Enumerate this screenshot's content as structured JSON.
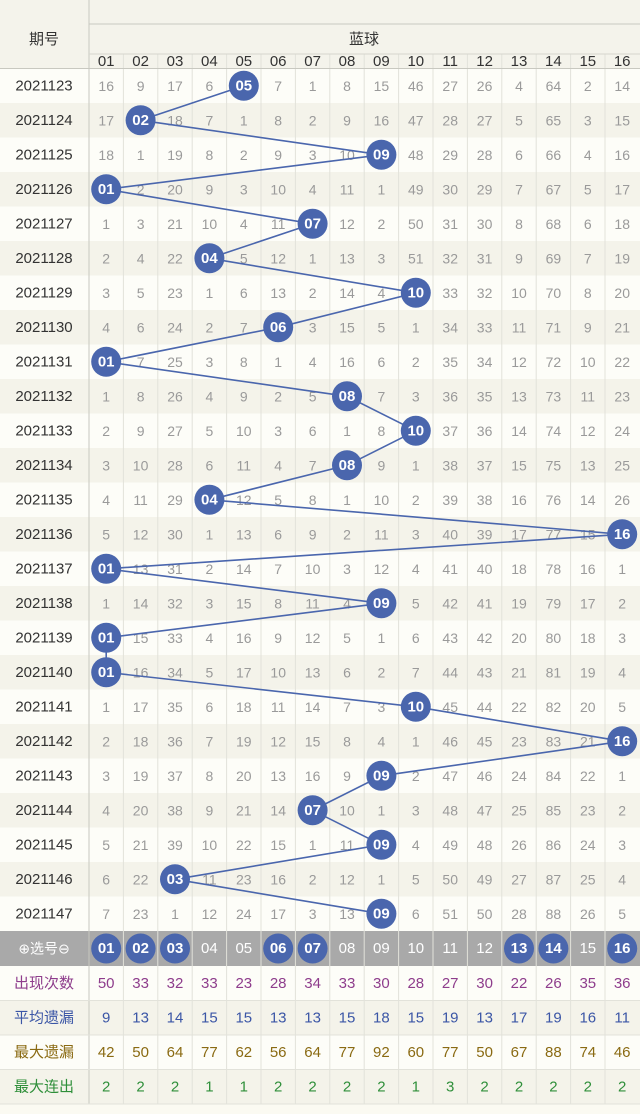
{
  "header": {
    "issue_col": "期号",
    "group_title": "蓝球",
    "numbers": [
      "01",
      "02",
      "03",
      "04",
      "05",
      "06",
      "07",
      "08",
      "09",
      "10",
      "11",
      "12",
      "13",
      "14",
      "15",
      "16"
    ]
  },
  "chart_data": {
    "type": "table",
    "columns": [
      "01",
      "02",
      "03",
      "04",
      "05",
      "06",
      "07",
      "08",
      "09",
      "10",
      "11",
      "12",
      "13",
      "14",
      "15",
      "16"
    ],
    "rows": [
      {
        "issue": "2021123",
        "hit": 5,
        "cells": [
          16,
          9,
          17,
          6,
          0,
          7,
          1,
          8,
          15,
          46,
          27,
          26,
          4,
          64,
          2,
          14
        ]
      },
      {
        "issue": "2021124",
        "hit": 2,
        "cells": [
          17,
          0,
          18,
          7,
          1,
          8,
          2,
          9,
          16,
          47,
          28,
          27,
          5,
          65,
          3,
          15
        ]
      },
      {
        "issue": "2021125",
        "hit": 9,
        "cells": [
          18,
          1,
          19,
          8,
          2,
          9,
          3,
          10,
          0,
          48,
          29,
          28,
          6,
          66,
          4,
          16
        ]
      },
      {
        "issue": "2021126",
        "hit": 1,
        "cells": [
          0,
          2,
          20,
          9,
          3,
          10,
          4,
          11,
          1,
          49,
          30,
          29,
          7,
          67,
          5,
          17
        ]
      },
      {
        "issue": "2021127",
        "hit": 7,
        "cells": [
          1,
          3,
          21,
          10,
          4,
          11,
          0,
          12,
          2,
          50,
          31,
          30,
          8,
          68,
          6,
          18
        ]
      },
      {
        "issue": "2021128",
        "hit": 4,
        "cells": [
          2,
          4,
          22,
          0,
          5,
          12,
          1,
          13,
          3,
          51,
          32,
          31,
          9,
          69,
          7,
          19
        ]
      },
      {
        "issue": "2021129",
        "hit": 10,
        "cells": [
          3,
          5,
          23,
          1,
          6,
          13,
          2,
          14,
          4,
          0,
          33,
          32,
          10,
          70,
          8,
          20
        ]
      },
      {
        "issue": "2021130",
        "hit": 6,
        "cells": [
          4,
          6,
          24,
          2,
          7,
          0,
          3,
          15,
          5,
          1,
          34,
          33,
          11,
          71,
          9,
          21
        ]
      },
      {
        "issue": "2021131",
        "hit": 1,
        "cells": [
          0,
          7,
          25,
          3,
          8,
          1,
          4,
          16,
          6,
          2,
          35,
          34,
          12,
          72,
          10,
          22
        ]
      },
      {
        "issue": "2021132",
        "hit": 8,
        "cells": [
          1,
          8,
          26,
          4,
          9,
          2,
          5,
          0,
          7,
          3,
          36,
          35,
          13,
          73,
          11,
          23
        ]
      },
      {
        "issue": "2021133",
        "hit": 10,
        "cells": [
          2,
          9,
          27,
          5,
          10,
          3,
          6,
          1,
          8,
          0,
          37,
          36,
          14,
          74,
          12,
          24
        ]
      },
      {
        "issue": "2021134",
        "hit": 8,
        "cells": [
          3,
          10,
          28,
          6,
          11,
          4,
          7,
          0,
          9,
          1,
          38,
          37,
          15,
          75,
          13,
          25
        ]
      },
      {
        "issue": "2021135",
        "hit": 4,
        "cells": [
          4,
          11,
          29,
          0,
          12,
          5,
          8,
          1,
          10,
          2,
          39,
          38,
          16,
          76,
          14,
          26
        ]
      },
      {
        "issue": "2021136",
        "hit": 16,
        "cells": [
          5,
          12,
          30,
          1,
          13,
          6,
          9,
          2,
          11,
          3,
          40,
          39,
          17,
          77,
          15,
          0
        ]
      },
      {
        "issue": "2021137",
        "hit": 1,
        "cells": [
          0,
          13,
          31,
          2,
          14,
          7,
          10,
          3,
          12,
          4,
          41,
          40,
          18,
          78,
          16,
          1
        ]
      },
      {
        "issue": "2021138",
        "hit": 9,
        "cells": [
          1,
          14,
          32,
          3,
          15,
          8,
          11,
          4,
          0,
          5,
          42,
          41,
          19,
          79,
          17,
          2
        ]
      },
      {
        "issue": "2021139",
        "hit": 1,
        "cells": [
          0,
          15,
          33,
          4,
          16,
          9,
          12,
          5,
          1,
          6,
          43,
          42,
          20,
          80,
          18,
          3
        ]
      },
      {
        "issue": "2021140",
        "hit": 1,
        "cells": [
          0,
          16,
          34,
          5,
          17,
          10,
          13,
          6,
          2,
          7,
          44,
          43,
          21,
          81,
          19,
          4
        ]
      },
      {
        "issue": "2021141",
        "hit": 10,
        "cells": [
          1,
          17,
          35,
          6,
          18,
          11,
          14,
          7,
          3,
          0,
          45,
          44,
          22,
          82,
          20,
          5
        ]
      },
      {
        "issue": "2021142",
        "hit": 16,
        "cells": [
          2,
          18,
          36,
          7,
          19,
          12,
          15,
          8,
          4,
          1,
          46,
          45,
          23,
          83,
          21,
          0
        ]
      },
      {
        "issue": "2021143",
        "hit": 9,
        "cells": [
          3,
          19,
          37,
          8,
          20,
          13,
          16,
          9,
          0,
          2,
          47,
          46,
          24,
          84,
          22,
          1
        ]
      },
      {
        "issue": "2021144",
        "hit": 7,
        "cells": [
          4,
          20,
          38,
          9,
          21,
          14,
          0,
          10,
          1,
          3,
          48,
          47,
          25,
          85,
          23,
          2
        ]
      },
      {
        "issue": "2021145",
        "hit": 9,
        "cells": [
          5,
          21,
          39,
          10,
          22,
          15,
          1,
          11,
          0,
          4,
          49,
          48,
          26,
          86,
          24,
          3
        ]
      },
      {
        "issue": "2021146",
        "hit": 3,
        "cells": [
          6,
          22,
          0,
          11,
          23,
          16,
          2,
          12,
          1,
          5,
          50,
          49,
          27,
          87,
          25,
          4
        ]
      },
      {
        "issue": "2021147",
        "hit": 9,
        "cells": [
          7,
          23,
          1,
          12,
          24,
          17,
          3,
          13,
          0,
          6,
          51,
          50,
          28,
          88,
          26,
          5
        ]
      }
    ],
    "selector": {
      "label": "⊕选号⊖",
      "selected": [
        "01",
        "02",
        "03",
        "06",
        "07",
        "13",
        "14",
        "16"
      ]
    },
    "stats": [
      {
        "label": "出现次数",
        "color": "#8e3d8c",
        "values": [
          50,
          33,
          32,
          33,
          23,
          28,
          34,
          33,
          30,
          28,
          27,
          30,
          22,
          26,
          35,
          36
        ]
      },
      {
        "label": "平均遗漏",
        "color": "#3b56a6",
        "values": [
          9,
          13,
          14,
          15,
          15,
          13,
          13,
          15,
          18,
          15,
          19,
          13,
          17,
          19,
          16,
          11
        ]
      },
      {
        "label": "最大遗漏",
        "color": "#8a6a12",
        "values": [
          42,
          50,
          64,
          77,
          62,
          56,
          64,
          77,
          92,
          60,
          77,
          50,
          67,
          88,
          74,
          46
        ]
      },
      {
        "label": "最大连出",
        "color": "#2f8f3a",
        "values": [
          2,
          2,
          2,
          1,
          1,
          2,
          2,
          2,
          2,
          1,
          3,
          2,
          2,
          2,
          2,
          2
        ]
      }
    ],
    "colors": {
      "ball": "#4a66ad",
      "line": "#4a66ad",
      "selector_bar": "#a9a9a9",
      "cell_text": "#9a9a9a",
      "issue_text": "#333333"
    }
  }
}
